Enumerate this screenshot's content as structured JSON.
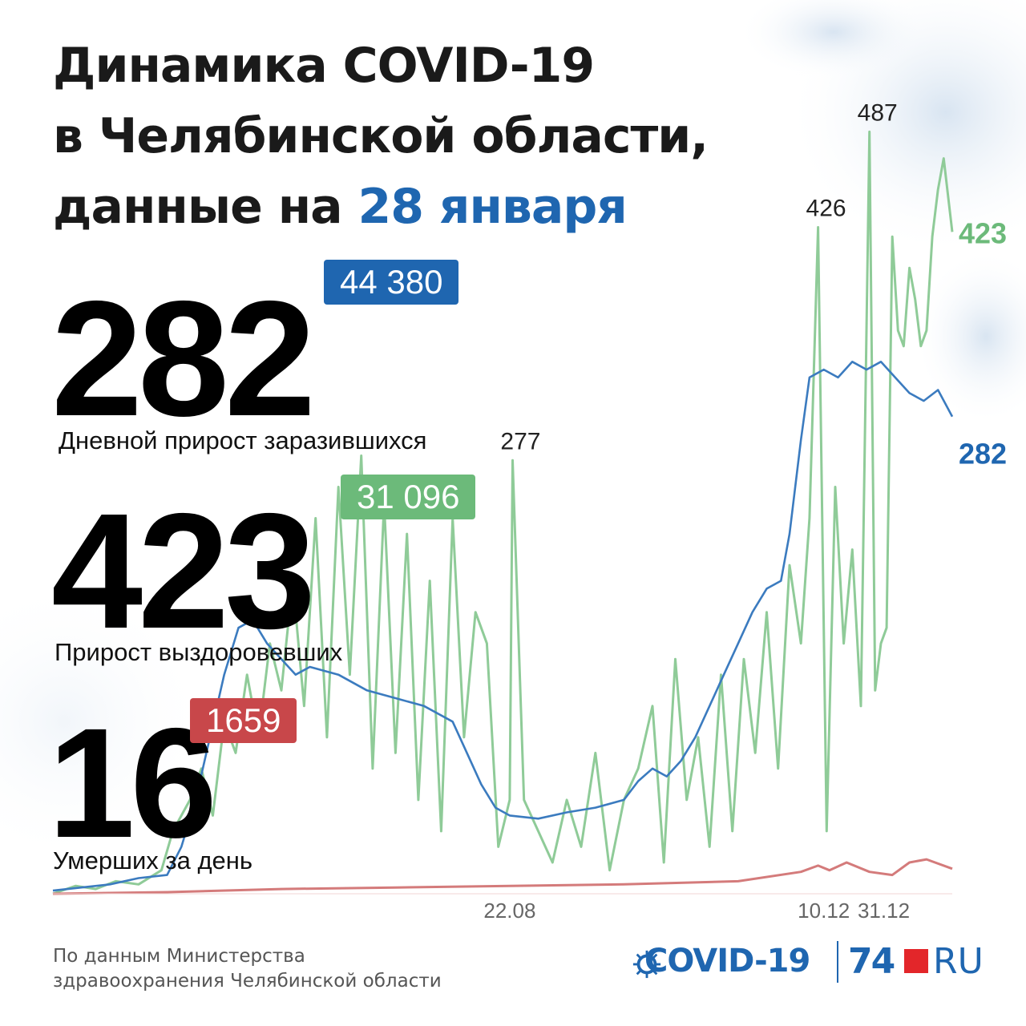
{
  "title": {
    "line1": "Динамика COVID-19",
    "line2": "в Челябинской области,",
    "line3_prefix": "данные на ",
    "line3_date": "28 января"
  },
  "stats": {
    "infected": {
      "value": "282",
      "caption": "Дневной прирост заразившихся",
      "total": "44 380"
    },
    "recovered": {
      "value": "423",
      "caption": "Прирост выздоровевших",
      "total": "31 096"
    },
    "deaths": {
      "value": "16",
      "caption": "Умерших за день",
      "total": "1659"
    }
  },
  "source": {
    "line1": "По данным Министерства",
    "line2": "здравоохранения Челябинской области"
  },
  "logo": {
    "covid": "COVID-19",
    "num": "74",
    "ru": "RU"
  },
  "colors": {
    "infected": "#3b7bbf",
    "recovered": "#8fcb98",
    "deaths": "#d47b7b",
    "accent_blue": "#1f66b0",
    "accent_green": "#6cba7a",
    "accent_red": "#c8474a"
  },
  "chart_data": {
    "type": "line",
    "x_range_days": [
      0,
      315
    ],
    "ylim": [
      0,
      520
    ],
    "x_ticks": [
      {
        "day": 160,
        "label": "22.08"
      },
      {
        "day": 270,
        "label": "10.12"
      },
      {
        "day": 291,
        "label": "31.12"
      }
    ],
    "annotations": [
      {
        "day": 161,
        "value": 277,
        "label": "277"
      },
      {
        "day": 268,
        "value": 426,
        "label": "426"
      },
      {
        "day": 286,
        "value": 487,
        "label": "487"
      }
    ],
    "end_labels": [
      {
        "series": "infected",
        "value": 282,
        "label": "282"
      },
      {
        "series": "recovered",
        "value": 423,
        "label": "423"
      }
    ],
    "series": [
      {
        "key": "infected",
        "points": [
          [
            0,
            2
          ],
          [
            10,
            4
          ],
          [
            20,
            6
          ],
          [
            30,
            10
          ],
          [
            40,
            12
          ],
          [
            45,
            30
          ],
          [
            50,
            60
          ],
          [
            55,
            100
          ],
          [
            60,
            140
          ],
          [
            65,
            170
          ],
          [
            70,
            175
          ],
          [
            75,
            160
          ],
          [
            80,
            150
          ],
          [
            85,
            140
          ],
          [
            90,
            145
          ],
          [
            100,
            140
          ],
          [
            110,
            130
          ],
          [
            120,
            125
          ],
          [
            130,
            120
          ],
          [
            140,
            110
          ],
          [
            145,
            90
          ],
          [
            150,
            70
          ],
          [
            155,
            55
          ],
          [
            160,
            50
          ],
          [
            170,
            48
          ],
          [
            180,
            52
          ],
          [
            190,
            55
          ],
          [
            200,
            60
          ],
          [
            205,
            72
          ],
          [
            210,
            80
          ],
          [
            215,
            75
          ],
          [
            220,
            85
          ],
          [
            225,
            100
          ],
          [
            230,
            120
          ],
          [
            235,
            140
          ],
          [
            240,
            160
          ],
          [
            245,
            180
          ],
          [
            250,
            195
          ],
          [
            255,
            200
          ],
          [
            258,
            230
          ],
          [
            262,
            290
          ],
          [
            265,
            330
          ],
          [
            270,
            335
          ],
          [
            275,
            330
          ],
          [
            280,
            340
          ],
          [
            285,
            335
          ],
          [
            290,
            340
          ],
          [
            295,
            330
          ],
          [
            300,
            320
          ],
          [
            305,
            315
          ],
          [
            310,
            322
          ],
          [
            315,
            305
          ]
        ]
      },
      {
        "key": "recovered",
        "points": [
          [
            0,
            0
          ],
          [
            8,
            5
          ],
          [
            15,
            3
          ],
          [
            22,
            8
          ],
          [
            30,
            6
          ],
          [
            38,
            15
          ],
          [
            42,
            40
          ],
          [
            48,
            60
          ],
          [
            52,
            80
          ],
          [
            56,
            50
          ],
          [
            60,
            110
          ],
          [
            64,
            90
          ],
          [
            68,
            140
          ],
          [
            72,
            100
          ],
          [
            76,
            160
          ],
          [
            80,
            130
          ],
          [
            84,
            200
          ],
          [
            88,
            120
          ],
          [
            92,
            240
          ],
          [
            96,
            100
          ],
          [
            100,
            260
          ],
          [
            104,
            140
          ],
          [
            108,
            280
          ],
          [
            112,
            80
          ],
          [
            116,
            250
          ],
          [
            120,
            90
          ],
          [
            124,
            230
          ],
          [
            128,
            60
          ],
          [
            132,
            200
          ],
          [
            136,
            40
          ],
          [
            140,
            240
          ],
          [
            144,
            100
          ],
          [
            148,
            180
          ],
          [
            152,
            160
          ],
          [
            156,
            30
          ],
          [
            160,
            60
          ],
          [
            161,
            277
          ],
          [
            165,
            60
          ],
          [
            170,
            40
          ],
          [
            175,
            20
          ],
          [
            180,
            60
          ],
          [
            185,
            30
          ],
          [
            190,
            90
          ],
          [
            195,
            15
          ],
          [
            200,
            60
          ],
          [
            205,
            80
          ],
          [
            210,
            120
          ],
          [
            214,
            20
          ],
          [
            218,
            150
          ],
          [
            222,
            60
          ],
          [
            226,
            100
          ],
          [
            230,
            30
          ],
          [
            234,
            140
          ],
          [
            238,
            40
          ],
          [
            242,
            150
          ],
          [
            246,
            90
          ],
          [
            250,
            180
          ],
          [
            254,
            80
          ],
          [
            258,
            210
          ],
          [
            262,
            160
          ],
          [
            265,
            240
          ],
          [
            268,
            426
          ],
          [
            271,
            40
          ],
          [
            274,
            260
          ],
          [
            277,
            160
          ],
          [
            280,
            220
          ],
          [
            283,
            120
          ],
          [
            286,
            487
          ],
          [
            288,
            130
          ],
          [
            290,
            160
          ],
          [
            292,
            170
          ],
          [
            294,
            420
          ],
          [
            296,
            360
          ],
          [
            298,
            350
          ],
          [
            300,
            400
          ],
          [
            302,
            380
          ],
          [
            304,
            350
          ],
          [
            306,
            360
          ],
          [
            308,
            420
          ],
          [
            310,
            450
          ],
          [
            312,
            470
          ],
          [
            315,
            423
          ]
        ]
      },
      {
        "key": "deaths",
        "points": [
          [
            0,
            0
          ],
          [
            40,
            1
          ],
          [
            80,
            3
          ],
          [
            120,
            4
          ],
          [
            160,
            5
          ],
          [
            200,
            6
          ],
          [
            240,
            8
          ],
          [
            262,
            14
          ],
          [
            268,
            18
          ],
          [
            272,
            15
          ],
          [
            278,
            20
          ],
          [
            286,
            14
          ],
          [
            294,
            12
          ],
          [
            300,
            20
          ],
          [
            306,
            22
          ],
          [
            315,
            16
          ]
        ]
      }
    ]
  }
}
